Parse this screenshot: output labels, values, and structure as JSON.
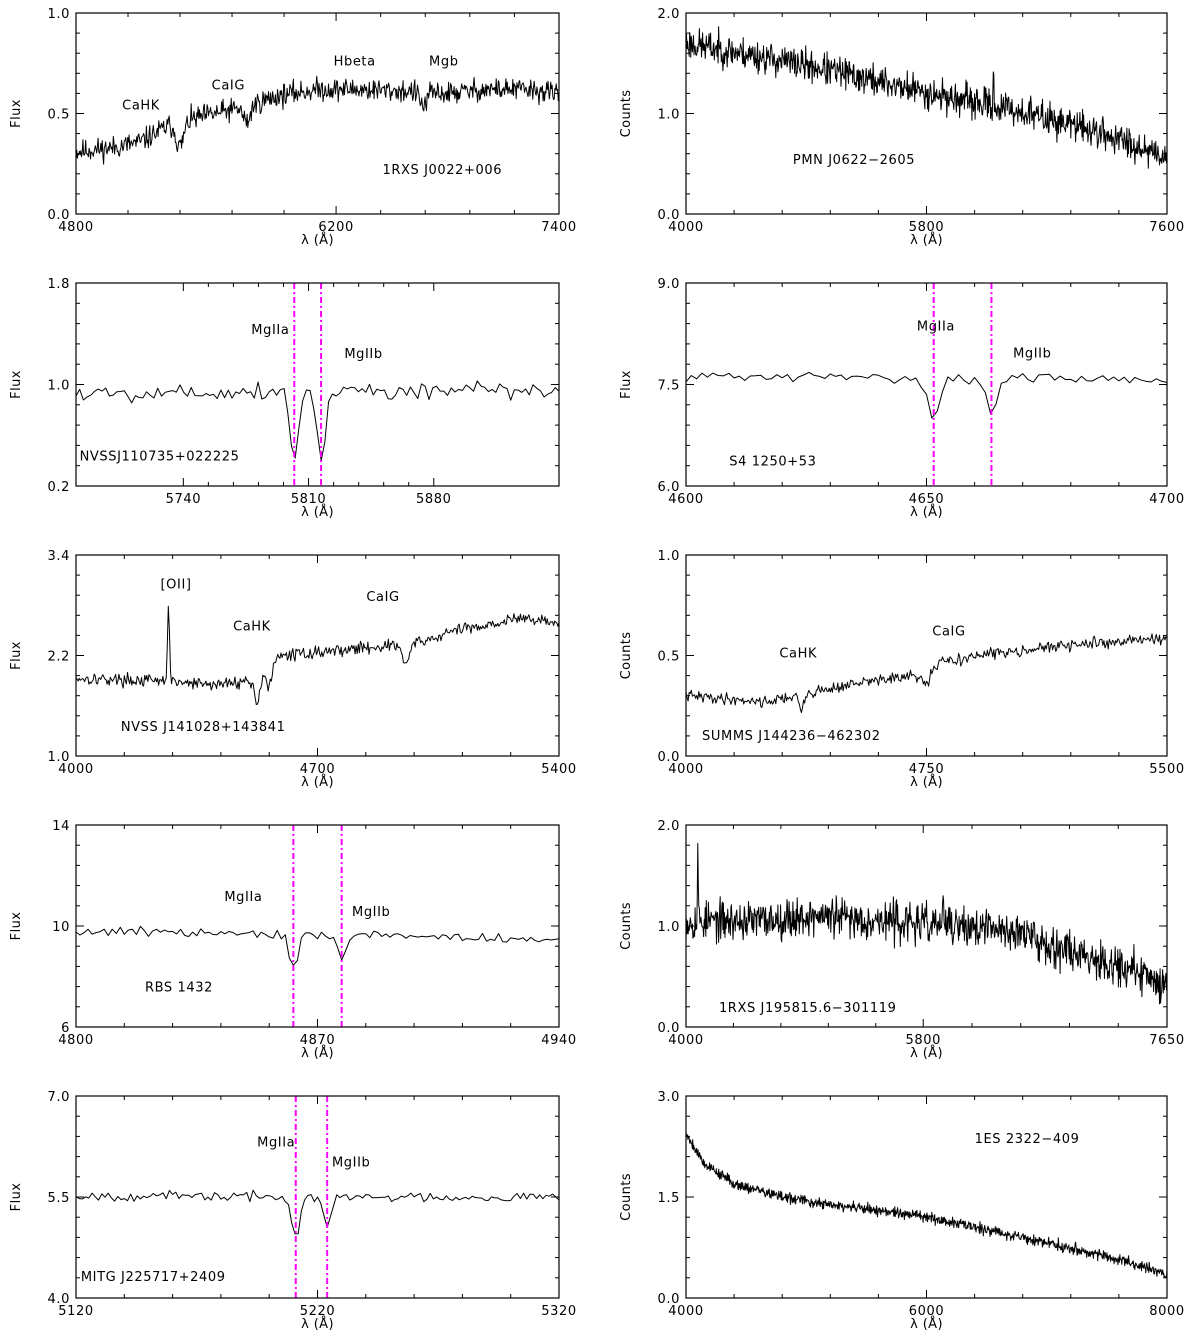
{
  "chart_data": [
    {
      "type": "line",
      "xlabel": "λ (Å)",
      "ylabel": "Flux",
      "xlim": [
        4800,
        7400
      ],
      "ylim": [
        0.0,
        1.0
      ],
      "xticks": [
        4800,
        6200,
        7400
      ],
      "xtick_labels": [
        "4800",
        "6200",
        "7400"
      ],
      "yticks": [
        0.0,
        0.5,
        1.0
      ],
      "ytick_labels": [
        "0.0",
        "0.5",
        "1.0"
      ],
      "source": "1RXS J0022+006",
      "source_pos": [
        6450,
        0.2
      ],
      "lines": [],
      "annotations": [
        {
          "text": "CaHK",
          "x": 5150,
          "y": 0.52
        },
        {
          "text": "CaIG",
          "x": 5620,
          "y": 0.62
        },
        {
          "text": "Hbeta",
          "x": 6300,
          "y": 0.74
        },
        {
          "text": "Mgb",
          "x": 6780,
          "y": 0.74
        }
      ],
      "profile": [
        [
          4800,
          0.31
        ],
        [
          5000,
          0.33
        ],
        [
          5150,
          0.36
        ],
        [
          5300,
          0.44
        ],
        [
          5500,
          0.49
        ],
        [
          5700,
          0.53
        ],
        [
          5900,
          0.59
        ],
        [
          6100,
          0.62
        ],
        [
          6300,
          0.62
        ],
        [
          6600,
          0.61
        ],
        [
          6800,
          0.6
        ],
        [
          7000,
          0.62
        ],
        [
          7200,
          0.62
        ],
        [
          7400,
          0.6
        ]
      ],
      "noise": 0.07,
      "points": 700,
      "seed": 11,
      "features": [
        {
          "x": 5360,
          "depth": -0.12,
          "width": 20
        },
        {
          "x": 5720,
          "depth": -0.08,
          "width": 18
        },
        {
          "x": 6670,
          "depth": -0.07,
          "width": 18
        }
      ]
    },
    {
      "type": "line",
      "xlabel": "λ (Å)",
      "ylabel": "Counts",
      "xlim": [
        4000,
        7600
      ],
      "ylim": [
        0.0,
        2.0
      ],
      "xticks": [
        4000,
        5800,
        7600
      ],
      "xtick_labels": [
        "4000",
        "5800",
        "7600"
      ],
      "yticks": [
        0.0,
        1.0,
        2.0
      ],
      "ytick_labels": [
        "0.0",
        "1.0",
        "2.0"
      ],
      "source": "PMN J0622−2605",
      "source_pos": [
        4800,
        0.5
      ],
      "lines": [],
      "annotations": [],
      "profile": [
        [
          4000,
          1.7
        ],
        [
          4500,
          1.58
        ],
        [
          5000,
          1.45
        ],
        [
          5500,
          1.3
        ],
        [
          6000,
          1.15
        ],
        [
          6500,
          1.02
        ],
        [
          7000,
          0.85
        ],
        [
          7600,
          0.58
        ]
      ],
      "noise": 0.2,
      "points": 900,
      "seed": 23,
      "features": [
        {
          "x": 6300,
          "depth": 0.3,
          "width": 4
        }
      ]
    },
    {
      "type": "line",
      "xlabel": "λ (Å)",
      "ylabel": "Flux",
      "xlim": [
        5680,
        5950
      ],
      "ylim": [
        0.2,
        1.8
      ],
      "xticks": [
        5740,
        5810,
        5880
      ],
      "xtick_labels": [
        "5740",
        "5810",
        "5880"
      ],
      "yticks": [
        0.2,
        1.0,
        1.8
      ],
      "ytick_labels": [
        "0.2",
        "1.0",
        "1.8"
      ],
      "source": "NVSSJ110735+022225",
      "source_pos": [
        5682,
        0.4
      ],
      "lines": [
        {
          "x": 5802,
          "label": "MgIIa",
          "label_x": 5778,
          "label_y": 1.4
        },
        {
          "x": 5817,
          "label": "MgIIb",
          "label_x": 5830,
          "label_y": 1.21
        }
      ],
      "annotations": [],
      "profile": [
        [
          5680,
          0.93
        ],
        [
          5800,
          0.95
        ],
        [
          5950,
          0.95
        ]
      ],
      "noise": 0.09,
      "points": 130,
      "seed": 5,
      "features": [
        {
          "x": 5802,
          "depth": -0.56,
          "width": 2.2
        },
        {
          "x": 5817,
          "depth": -0.56,
          "width": 2.2
        }
      ]
    },
    {
      "type": "line",
      "xlabel": "λ (Å)",
      "ylabel": "Flux",
      "xlim": [
        4600,
        4700
      ],
      "ylim": [
        6.0,
        9.0
      ],
      "xticks": [
        4600,
        4650,
        4700
      ],
      "xtick_labels": [
        "4600",
        "4650",
        "4700"
      ],
      "yticks": [
        6.0,
        7.5,
        9.0
      ],
      "ytick_labels": [
        "6.0",
        "7.5",
        "9.0"
      ],
      "source": "S4 1250+53",
      "source_pos": [
        4609,
        6.3
      ],
      "lines": [
        {
          "x": 4651.5,
          "label": "MgIIa",
          "label_x": 4648,
          "label_y": 8.3
        },
        {
          "x": 4663.5,
          "label": "MgIIb",
          "label_x": 4668,
          "label_y": 7.9
        }
      ],
      "annotations": [],
      "profile": [
        [
          4600,
          7.62
        ],
        [
          4700,
          7.58
        ]
      ],
      "noise": 0.09,
      "points": 90,
      "seed": 31,
      "features": [
        {
          "x": 4651.5,
          "depth": -0.6,
          "width": 1.2
        },
        {
          "x": 4663.5,
          "depth": -0.5,
          "width": 1.2
        }
      ]
    },
    {
      "type": "line",
      "xlabel": "λ (Å)",
      "ylabel": "Flux",
      "xlim": [
        4000,
        5400
      ],
      "ylim": [
        1.0,
        3.4
      ],
      "xticks": [
        4000,
        4700,
        5400
      ],
      "xtick_labels": [
        "4000",
        "4700",
        "5400"
      ],
      "yticks": [
        1.0,
        2.2,
        3.4
      ],
      "ytick_labels": [
        "1.0",
        "2.2",
        "3.4"
      ],
      "source": "NVSS J141028+143841",
      "source_pos": [
        4130,
        1.3
      ],
      "lines": [],
      "annotations": [
        {
          "text": "[OII]",
          "x": 4290,
          "y": 3.0
        },
        {
          "text": "CaHK",
          "x": 4510,
          "y": 2.5
        },
        {
          "text": "CaIG",
          "x": 4890,
          "y": 2.85
        }
      ],
      "profile": [
        [
          4000,
          1.93
        ],
        [
          4200,
          1.9
        ],
        [
          4400,
          1.85
        ],
        [
          4500,
          1.9
        ],
        [
          4600,
          2.2
        ],
        [
          4800,
          2.28
        ],
        [
          5000,
          2.35
        ],
        [
          5100,
          2.5
        ],
        [
          5300,
          2.65
        ],
        [
          5400,
          2.58
        ]
      ],
      "noise": 0.09,
      "points": 450,
      "seed": 17,
      "features": [
        {
          "x": 4268,
          "depth": 0.92,
          "width": 3
        },
        {
          "x": 4525,
          "depth": -0.32,
          "width": 9
        },
        {
          "x": 4560,
          "depth": -0.25,
          "width": 8
        },
        {
          "x": 4955,
          "depth": -0.25,
          "width": 9
        }
      ]
    },
    {
      "type": "line",
      "xlabel": "λ (Å)",
      "ylabel": "Counts",
      "xlim": [
        4000,
        5500
      ],
      "ylim": [
        0.0,
        1.0
      ],
      "xticks": [
        4000,
        4750,
        5500
      ],
      "xtick_labels": [
        "4000",
        "4750",
        "5500"
      ],
      "yticks": [
        0.0,
        0.5,
        1.0
      ],
      "ytick_labels": [
        "0.0",
        "0.5",
        "1.0"
      ],
      "source": "SUMMS J144236−462302",
      "source_pos": [
        4050,
        0.08
      ],
      "lines": [],
      "annotations": [
        {
          "text": "CaHK",
          "x": 4350,
          "y": 0.49
        },
        {
          "text": "CaIG",
          "x": 4820,
          "y": 0.6
        }
      ],
      "profile": [
        [
          4000,
          0.3
        ],
        [
          4250,
          0.27
        ],
        [
          4400,
          0.32
        ],
        [
          4600,
          0.38
        ],
        [
          4750,
          0.4
        ],
        [
          4800,
          0.47
        ],
        [
          5000,
          0.52
        ],
        [
          5200,
          0.55
        ],
        [
          5500,
          0.59
        ]
      ],
      "noise": 0.035,
      "points": 450,
      "seed": 41,
      "features": [
        {
          "x": 4360,
          "depth": -0.08,
          "width": 8
        },
        {
          "x": 4750,
          "depth": -0.06,
          "width": 8
        }
      ]
    },
    {
      "type": "line",
      "xlabel": "λ (Å)",
      "ylabel": "Flux",
      "xlim": [
        4800,
        4940
      ],
      "ylim": [
        6,
        14
      ],
      "xticks": [
        4800,
        4870,
        4940
      ],
      "xtick_labels": [
        "4800",
        "4870",
        "4940"
      ],
      "yticks": [
        6,
        10,
        14
      ],
      "ytick_labels": [
        "6",
        "10",
        "14"
      ],
      "source": "RBS 1432",
      "source_pos": [
        4820,
        7.4
      ],
      "lines": [
        {
          "x": 4863,
          "label": "MgIIa",
          "label_x": 4843,
          "label_y": 11.0
        },
        {
          "x": 4877,
          "label": "MgIIb",
          "label_x": 4880,
          "label_y": 10.4
        }
      ],
      "annotations": [],
      "profile": [
        [
          4800,
          9.8
        ],
        [
          4870,
          9.7
        ],
        [
          4940,
          9.45
        ]
      ],
      "noise": 0.25,
      "points": 120,
      "seed": 9,
      "features": [
        {
          "x": 4863,
          "depth": -1.3,
          "width": 1.3
        },
        {
          "x": 4877,
          "depth": -0.9,
          "width": 1.3
        }
      ]
    },
    {
      "type": "line",
      "xlabel": "λ (Å)",
      "ylabel": "Counts",
      "xlim": [
        4000,
        7650
      ],
      "ylim": [
        0.0,
        2.0
      ],
      "xticks": [
        4000,
        5800,
        7650
      ],
      "xtick_labels": [
        "4000",
        "5800",
        "7650"
      ],
      "yticks": [
        0.0,
        1.0,
        2.0
      ],
      "ytick_labels": [
        "0.0",
        "1.0",
        "2.0"
      ],
      "source": "1RXS J195815.6−301119",
      "source_pos": [
        4250,
        0.15
      ],
      "lines": [],
      "annotations": [],
      "profile": [
        [
          4000,
          1.05
        ],
        [
          4500,
          1.05
        ],
        [
          5000,
          1.1
        ],
        [
          5500,
          1.05
        ],
        [
          6000,
          1.0
        ],
        [
          6500,
          0.95
        ],
        [
          6800,
          0.8
        ],
        [
          7200,
          0.65
        ],
        [
          7650,
          0.42
        ]
      ],
      "noise": 0.24,
      "points": 900,
      "seed": 53,
      "features": [
        {
          "x": 4090,
          "depth": 0.7,
          "width": 3
        },
        {
          "x": 5600,
          "depth": 0.75,
          "width": 3
        },
        {
          "x": 5600,
          "depth": -0.65,
          "width": 3
        },
        {
          "x": 5950,
          "depth": 0.35,
          "width": 4
        }
      ]
    },
    {
      "type": "line",
      "xlabel": "λ (Å)",
      "ylabel": "Flux",
      "xlim": [
        5120,
        5320
      ],
      "ylim": [
        4.0,
        7.0
      ],
      "xticks": [
        5120,
        5220,
        5320
      ],
      "xtick_labels": [
        "5120",
        "5220",
        "5320"
      ],
      "yticks": [
        4.0,
        5.5,
        7.0
      ],
      "ytick_labels": [
        "4.0",
        "5.5",
        "7.0"
      ],
      "source": "MITG J225717+2409",
      "source_pos": [
        5122,
        4.25
      ],
      "lines": [
        {
          "x": 5211,
          "label": "MgIIa",
          "label_x": 5195,
          "label_y": 6.25
        },
        {
          "x": 5224,
          "label": "MgIIb",
          "label_x": 5226,
          "label_y": 5.95
        }
      ],
      "annotations": [],
      "profile": [
        [
          5120,
          5.52
        ],
        [
          5220,
          5.5
        ],
        [
          5320,
          5.5
        ]
      ],
      "noise": 0.09,
      "points": 150,
      "seed": 67,
      "features": [
        {
          "x": 5211,
          "depth": -0.62,
          "width": 1.6
        },
        {
          "x": 5224,
          "depth": -0.45,
          "width": 1.6
        }
      ]
    },
    {
      "type": "line",
      "xlabel": "λ (Å)",
      "ylabel": "Counts",
      "xlim": [
        4000,
        8000
      ],
      "ylim": [
        0.0,
        3.0
      ],
      "xticks": [
        4000,
        6000,
        8000
      ],
      "xtick_labels": [
        "4000",
        "6000",
        "8000"
      ],
      "yticks": [
        0.0,
        1.5,
        3.0
      ],
      "ytick_labels": [
        "0.0",
        "1.5",
        "3.0"
      ],
      "source": "1ES 2322−409",
      "source_pos": [
        6400,
        2.3
      ],
      "lines": [],
      "annotations": [],
      "profile": [
        [
          4000,
          2.45
        ],
        [
          4150,
          2.0
        ],
        [
          4400,
          1.7
        ],
        [
          4800,
          1.5
        ],
        [
          5200,
          1.38
        ],
        [
          5600,
          1.3
        ],
        [
          6000,
          1.2
        ],
        [
          6500,
          1.02
        ],
        [
          7000,
          0.82
        ],
        [
          7500,
          0.62
        ],
        [
          8000,
          0.36
        ]
      ],
      "noise": 0.1,
      "points": 1000,
      "seed": 79,
      "features": [
        {
          "x": 5885,
          "depth": 1.35,
          "width": 4
        },
        {
          "x": 5885,
          "depth": -1.25,
          "width": 4
        }
      ]
    }
  ]
}
